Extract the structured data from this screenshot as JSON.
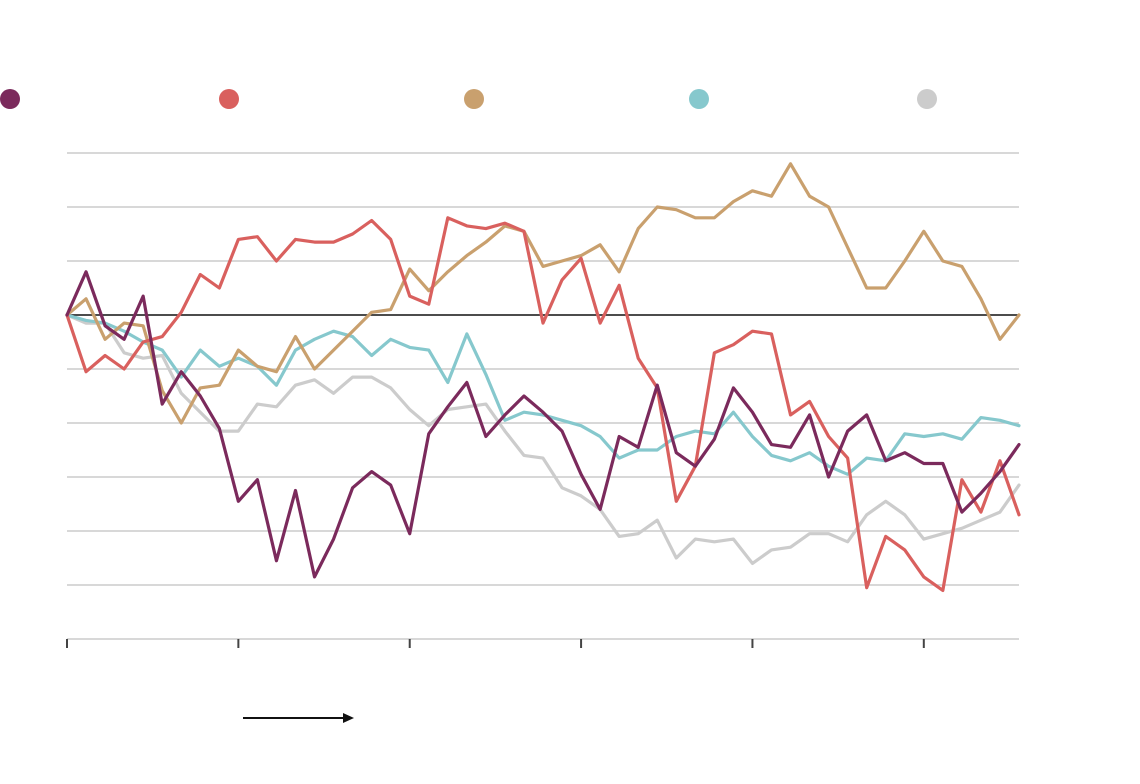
{
  "chart_data": {
    "type": "line",
    "x": [
      0,
      1,
      2,
      3,
      4,
      5,
      6,
      7,
      8,
      9,
      10,
      11,
      12,
      13,
      14,
      15,
      16,
      17,
      18,
      19,
      20,
      21,
      22,
      23,
      24,
      25,
      26,
      27,
      28,
      29,
      30,
      31,
      32,
      33,
      34,
      35,
      36,
      37,
      38,
      39,
      40,
      41,
      42,
      43,
      44,
      45,
      46,
      47,
      48,
      49,
      50
    ],
    "xlim": [
      0,
      50
    ],
    "xticks": [
      0,
      9,
      18,
      27,
      36,
      45
    ],
    "ylim": [
      -6,
      3
    ],
    "yticks": [
      -6,
      -5,
      -4,
      -3,
      -2,
      -1,
      0,
      1,
      2,
      3
    ],
    "grid": true,
    "series": [
      {
        "color": "#7b2a5c",
        "values": [
          0,
          0.8,
          -0.2,
          -0.45,
          0.35,
          -1.65,
          -1.05,
          -1.5,
          -2.1,
          -3.45,
          -3.05,
          -4.55,
          -3.25,
          -4.85,
          -4.15,
          -3.2,
          -2.9,
          -3.15,
          -4.05,
          -2.2,
          -1.7,
          -1.25,
          -2.25,
          -1.85,
          -1.5,
          -1.8,
          -2.15,
          -2.95,
          -3.6,
          -2.25,
          -2.45,
          -1.3,
          -2.55,
          -2.8,
          -2.3,
          -1.35,
          -1.8,
          -2.4,
          -2.45,
          -1.85,
          -3.0,
          -2.15,
          -1.85,
          -2.7,
          -2.55,
          -2.75,
          -2.75,
          -3.65,
          -3.3,
          -2.9,
          -2.4
        ]
      },
      {
        "color": "#d9605e",
        "values": [
          0,
          -1.05,
          -0.75,
          -1.0,
          -0.5,
          -0.4,
          0.05,
          0.75,
          0.5,
          1.4,
          1.45,
          1.0,
          1.4,
          1.35,
          1.35,
          1.5,
          1.75,
          1.4,
          0.35,
          0.2,
          1.8,
          1.65,
          1.6,
          1.7,
          1.55,
          -0.15,
          0.65,
          1.05,
          -0.15,
          0.55,
          -0.8,
          -1.35,
          -3.45,
          -2.8,
          -0.7,
          -0.55,
          -0.3,
          -0.35,
          -1.85,
          -1.6,
          -2.25,
          -2.65,
          -5.05,
          -4.1,
          -4.35,
          -4.85,
          -5.1,
          -3.05,
          -3.65,
          -2.7,
          -3.7
        ]
      },
      {
        "color": "#c9a06e",
        "values": [
          0,
          0.3,
          -0.45,
          -0.15,
          -0.2,
          -1.4,
          -2.0,
          -1.35,
          -1.3,
          -0.65,
          -0.95,
          -1.05,
          -0.4,
          -1.0,
          -0.65,
          -0.3,
          0.05,
          0.1,
          0.85,
          0.45,
          0.8,
          1.1,
          1.35,
          1.65,
          1.55,
          0.9,
          1.0,
          1.1,
          1.3,
          0.8,
          1.6,
          2.0,
          1.95,
          1.8,
          1.8,
          2.1,
          2.3,
          2.2,
          2.8,
          2.2,
          2.0,
          1.25,
          0.5,
          0.5,
          1.0,
          1.55,
          1.0,
          0.9,
          0.3,
          -0.45,
          0
        ]
      },
      {
        "color": "#86c8cd",
        "values": [
          0,
          -0.1,
          -0.15,
          -0.3,
          -0.5,
          -0.65,
          -1.15,
          -0.65,
          -0.95,
          -0.8,
          -0.95,
          -1.3,
          -0.65,
          -0.45,
          -0.3,
          -0.4,
          -0.75,
          -0.45,
          -0.6,
          -0.65,
          -1.25,
          -0.35,
          -1.1,
          -1.95,
          -1.8,
          -1.85,
          -1.95,
          -2.05,
          -2.25,
          -2.65,
          -2.5,
          -2.5,
          -2.25,
          -2.15,
          -2.2,
          -1.8,
          -2.25,
          -2.6,
          -2.7,
          -2.55,
          -2.8,
          -2.95,
          -2.65,
          -2.7,
          -2.2,
          -2.25,
          -2.2,
          -2.3,
          -1.9,
          -1.95,
          -2.05
        ]
      },
      {
        "color": "#cccccc",
        "values": [
          0,
          -0.15,
          -0.15,
          -0.7,
          -0.8,
          -0.75,
          -1.45,
          -1.8,
          -2.15,
          -2.15,
          -1.65,
          -1.7,
          -1.3,
          -1.2,
          -1.45,
          -1.15,
          -1.15,
          -1.35,
          -1.75,
          -2.05,
          -1.75,
          -1.7,
          -1.65,
          -2.15,
          -2.6,
          -2.65,
          -3.2,
          -3.35,
          -3.6,
          -4.1,
          -4.05,
          -3.8,
          -4.5,
          -4.15,
          -4.2,
          -4.15,
          -4.6,
          -4.35,
          -4.3,
          -4.05,
          -4.05,
          -4.2,
          -3.7,
          -3.45,
          -3.7,
          -4.15,
          -4.05,
          -3.95,
          -3.8,
          -3.65,
          -3.15
        ]
      }
    ]
  }
}
